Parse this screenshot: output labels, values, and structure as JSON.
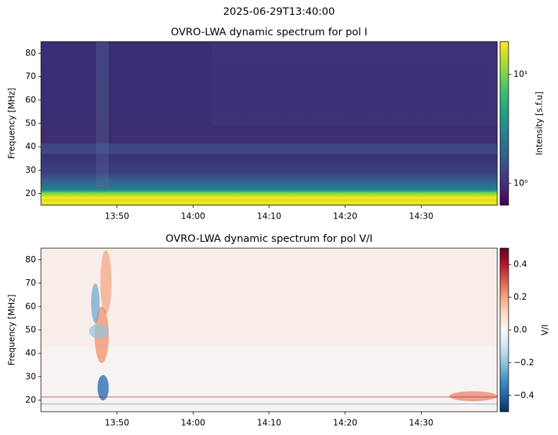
{
  "title": "2025-06-29T13:40:00",
  "chart_data": [
    {
      "type": "heatmap",
      "title": "OVRO-LWA dynamic spectrum for pol I",
      "y_label": "Frequency [MHz]",
      "xlim": [
        820,
        880
      ],
      "xticks": [
        {
          "value": 830,
          "label": "13:50"
        },
        {
          "value": 840,
          "label": "14:00"
        },
        {
          "value": 850,
          "label": "14:10"
        },
        {
          "value": 860,
          "label": "14:20"
        },
        {
          "value": 870,
          "label": "14:30"
        }
      ],
      "ylim": [
        15,
        85
      ],
      "yticks": [
        20,
        30,
        40,
        50,
        60,
        70,
        80
      ],
      "colormap": "viridis",
      "colorbar_scale": "log",
      "colorbar_label": "Intensity [s.f.u]",
      "clim": [
        0.63,
        20
      ],
      "cticks": [
        {
          "value": 1,
          "label": "10⁰"
        },
        {
          "value": 10,
          "label": "10¹"
        }
      ]
    },
    {
      "type": "heatmap",
      "title": "OVRO-LWA dynamic spectrum for pol V/I",
      "y_label": "Frequency [MHz]",
      "xlim": [
        820,
        880
      ],
      "xticks": [
        {
          "value": 830,
          "label": "13:50"
        },
        {
          "value": 840,
          "label": "14:00"
        },
        {
          "value": 850,
          "label": "14:10"
        },
        {
          "value": 860,
          "label": "14:20"
        },
        {
          "value": 870,
          "label": "14:30"
        }
      ],
      "ylim": [
        15,
        85
      ],
      "yticks": [
        20,
        30,
        40,
        50,
        60,
        70,
        80
      ],
      "colormap": "RdBu_r",
      "colorbar_scale": "linear",
      "colorbar_label": "V/I",
      "clim": [
        -0.5,
        0.5
      ],
      "cticks": [
        {
          "value": 0.4,
          "label": "0.4"
        },
        {
          "value": 0.2,
          "label": "0.2"
        },
        {
          "value": 0,
          "label": "0.0"
        },
        {
          "value": -0.2,
          "label": "−0.2"
        },
        {
          "value": -0.4,
          "label": "−0.4"
        }
      ]
    }
  ]
}
